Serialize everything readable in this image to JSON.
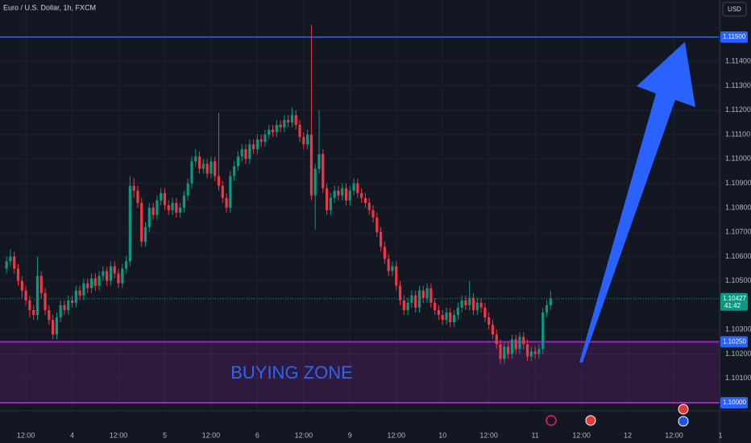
{
  "chart_data": {
    "type": "candlestick",
    "title": "Euro / U.S. Dollar, 1h, FXCM",
    "currency": "USD",
    "background": "#131722",
    "grid_color": "#1f2330",
    "up_color": "#089981",
    "down_color": "#f23645",
    "grid": true,
    "xlim": [
      -1.7,
      184.8
    ],
    "ylim": [
      1.09967,
      1.11652
    ],
    "xticks": [
      {
        "value": 5,
        "label": "12:00"
      },
      {
        "value": 17,
        "label": "4"
      },
      {
        "value": 29,
        "label": "12:00"
      },
      {
        "value": 41,
        "label": "5"
      },
      {
        "value": 53,
        "label": "12:00"
      },
      {
        "value": 65,
        "label": "6"
      },
      {
        "value": 77,
        "label": "12:00"
      },
      {
        "value": 89,
        "label": "9"
      },
      {
        "value": 101,
        "label": "12:00"
      },
      {
        "value": 113,
        "label": "10"
      },
      {
        "value": 125,
        "label": "12:00"
      },
      {
        "value": 137,
        "label": "11"
      },
      {
        "value": 149,
        "label": "12:00"
      },
      {
        "value": 161,
        "label": "12"
      },
      {
        "value": 173,
        "label": "12:00"
      },
      {
        "value": 185,
        "label": "1"
      }
    ],
    "yticks": [
      {
        "value": 1.114,
        "label": "1.11400"
      },
      {
        "value": 1.113,
        "label": "1.11300"
      },
      {
        "value": 1.112,
        "label": "1.11200"
      },
      {
        "value": 1.111,
        "label": "1.11100"
      },
      {
        "value": 1.11,
        "label": "1.11000"
      },
      {
        "value": 1.109,
        "label": "1.10900"
      },
      {
        "value": 1.108,
        "label": "1.10800"
      },
      {
        "value": 1.107,
        "label": "1.10700"
      },
      {
        "value": 1.106,
        "label": "1.10600"
      },
      {
        "value": 1.105,
        "label": "1.10500"
      },
      {
        "value": 1.103,
        "label": "1.10300"
      },
      {
        "value": 1.102,
        "label": "1.10200"
      },
      {
        "value": 1.101,
        "label": "1.10100"
      }
    ],
    "open": [
      1.1055,
      1.1058,
      1.106,
      1.1055,
      1.105,
      1.1046,
      1.1042,
      1.1038,
      1.1036,
      1.1052,
      1.1045,
      1.1038,
      1.1034,
      1.1028,
      1.1035,
      1.104,
      1.1038,
      1.1042,
      1.1041,
      1.1046,
      1.1044,
      1.1049,
      1.1047,
      1.1051,
      1.1048,
      1.1052,
      1.1054,
      1.105,
      1.1056,
      1.1053,
      1.1049,
      1.1055,
      1.1058,
      1.1089,
      1.1087,
      1.1082,
      1.1066,
      1.1072,
      1.108,
      1.1077,
      1.1083,
      1.1086,
      1.1081,
      1.1079,
      1.1082,
      1.1078,
      1.108,
      1.1085,
      1.109,
      1.1099,
      1.1101,
      1.1096,
      1.1098,
      1.1094,
      1.1099,
      1.1093,
      1.1089,
      1.1084,
      1.108,
      1.1093,
      1.1097,
      1.1101,
      1.1104,
      1.11,
      1.1106,
      1.1104,
      1.1108,
      1.1107,
      1.111,
      1.1112,
      1.1111,
      1.1114,
      1.1113,
      1.1116,
      1.1115,
      1.1118,
      1.1114,
      1.1109,
      1.1106,
      1.111,
      1.1085,
      1.1096,
      1.1102,
      1.1088,
      1.1079,
      1.1084,
      1.1087,
      1.1085,
      1.1088,
      1.1083,
      1.1087,
      1.109,
      1.1086,
      1.1084,
      1.1082,
      1.1079,
      1.1076,
      1.107,
      1.1064,
      1.1059,
      1.1054,
      1.1056,
      1.1048,
      1.1042,
      1.1038,
      1.1041,
      1.1044,
      1.1039,
      1.1046,
      1.1043,
      1.1047,
      1.1041,
      1.1038,
      1.1036,
      1.1034,
      1.1037,
      1.1033,
      1.1036,
      1.1039,
      1.1042,
      1.104,
      1.1043,
      1.1038,
      1.1041,
      1.1039,
      1.1035,
      1.1032,
      1.1028,
      1.1024,
      1.1018,
      1.1023,
      1.102,
      1.1026,
      1.1022,
      1.1027,
      1.1024,
      1.1019,
      1.1021,
      1.102,
      1.1022,
      1.1037,
      1.104
    ],
    "high": [
      1.106,
      1.1063,
      1.1062,
      1.1057,
      1.1052,
      1.1048,
      1.1044,
      1.104,
      1.106,
      1.1054,
      1.1047,
      1.104,
      1.1036,
      1.1037,
      1.1042,
      1.1042,
      1.1044,
      1.1044,
      1.1048,
      1.1048,
      1.1051,
      1.1051,
      1.1053,
      1.1053,
      1.1054,
      1.1056,
      1.1056,
      1.1058,
      1.1058,
      1.1055,
      1.1057,
      1.106,
      1.1093,
      1.1092,
      1.1089,
      1.1084,
      1.1074,
      1.1082,
      1.1082,
      1.1085,
      1.1088,
      1.1088,
      1.1083,
      1.1084,
      1.1084,
      1.1082,
      1.1087,
      1.1092,
      1.1101,
      1.1104,
      1.1103,
      1.11,
      1.11,
      1.1101,
      1.1101,
      1.1119,
      1.1091,
      1.1086,
      1.1095,
      1.1099,
      1.1103,
      1.1106,
      1.1106,
      1.1108,
      1.1108,
      1.111,
      1.111,
      1.1112,
      1.1114,
      1.1114,
      1.1116,
      1.1116,
      1.1118,
      1.1118,
      1.1121,
      1.112,
      1.1116,
      1.1111,
      1.1112,
      1.1155,
      1.1098,
      1.112,
      1.1104,
      1.109,
      1.1086,
      1.1089,
      1.1089,
      1.109,
      1.109,
      1.1089,
      1.1092,
      1.1092,
      1.1088,
      1.1086,
      1.1084,
      1.1081,
      1.1078,
      1.1072,
      1.1066,
      1.1061,
      1.1058,
      1.1058,
      1.105,
      1.1044,
      1.1043,
      1.1046,
      1.1046,
      1.1048,
      1.1048,
      1.1049,
      1.1049,
      1.1043,
      1.104,
      1.1038,
      1.1039,
      1.1039,
      1.1038,
      1.1041,
      1.1044,
      1.1044,
      1.105,
      1.1045,
      1.1043,
      1.1043,
      1.1041,
      1.1037,
      1.1034,
      1.103,
      1.1026,
      1.1025,
      1.1025,
      1.1028,
      1.1028,
      1.1029,
      1.1029,
      1.1026,
      1.1023,
      1.1023,
      1.1024,
      1.1039,
      1.1042,
      1.1046
    ],
    "low": [
      1.1053,
      1.1056,
      1.1053,
      1.1048,
      1.1043,
      1.104,
      1.1035,
      1.1034,
      1.1034,
      1.1043,
      1.1036,
      1.1032,
      1.1026,
      1.1026,
      1.1033,
      1.1036,
      1.1036,
      1.1039,
      1.1039,
      1.1042,
      1.1042,
      1.1045,
      1.1045,
      1.1046,
      1.1046,
      1.105,
      1.1048,
      1.1048,
      1.1051,
      1.1047,
      1.1047,
      1.1053,
      1.1056,
      1.1084,
      1.108,
      1.1064,
      1.1064,
      1.107,
      1.1075,
      1.1075,
      1.1081,
      1.1079,
      1.1077,
      1.1077,
      1.1076,
      1.1076,
      1.1078,
      1.1083,
      1.1088,
      1.1097,
      1.1094,
      1.1094,
      1.1092,
      1.1092,
      1.1091,
      1.1087,
      1.1082,
      1.1078,
      1.1078,
      1.1091,
      1.1095,
      1.1099,
      1.1098,
      1.1098,
      1.1102,
      1.1102,
      1.1105,
      1.1105,
      1.1108,
      1.1109,
      1.1109,
      1.1111,
      1.1111,
      1.1113,
      1.1113,
      1.1112,
      1.1107,
      1.1104,
      1.1104,
      1.1083,
      1.1071,
      1.1094,
      1.1086,
      1.1077,
      1.1077,
      1.1082,
      1.1083,
      1.1083,
      1.1081,
      1.1081,
      1.1085,
      1.1084,
      1.1082,
      1.108,
      1.1077,
      1.1074,
      1.1068,
      1.1062,
      1.1057,
      1.1052,
      1.1052,
      1.1046,
      1.104,
      1.1036,
      1.1036,
      1.1039,
      1.1037,
      1.1037,
      1.1041,
      1.1041,
      1.1039,
      1.1036,
      1.1034,
      1.1032,
      1.1032,
      1.1031,
      1.1031,
      1.1034,
      1.1037,
      1.1038,
      1.1038,
      1.1036,
      1.1036,
      1.1037,
      1.1033,
      1.103,
      1.1026,
      1.1022,
      1.1016,
      1.1016,
      1.1018,
      1.1018,
      1.102,
      1.102,
      1.1022,
      1.1017,
      1.1017,
      1.1018,
      1.1018,
      1.102,
      1.1035,
      1.1038
    ],
    "close": [
      1.1058,
      1.106,
      1.1055,
      1.105,
      1.1046,
      1.1042,
      1.1038,
      1.1036,
      1.1052,
      1.1045,
      1.1038,
      1.1034,
      1.1028,
      1.1035,
      1.104,
      1.1038,
      1.1042,
      1.1041,
      1.1046,
      1.1044,
      1.1049,
      1.1047,
      1.1051,
      1.1048,
      1.1052,
      1.1054,
      1.105,
      1.1056,
      1.1053,
      1.1049,
      1.1055,
      1.1058,
      1.1089,
      1.1087,
      1.1082,
      1.1066,
      1.1072,
      1.108,
      1.1077,
      1.1083,
      1.1086,
      1.1081,
      1.1079,
      1.1082,
      1.1078,
      1.108,
      1.1085,
      1.109,
      1.1099,
      1.1101,
      1.1096,
      1.1098,
      1.1094,
      1.1099,
      1.1093,
      1.1089,
      1.1084,
      1.108,
      1.1093,
      1.1097,
      1.1101,
      1.1104,
      1.11,
      1.1106,
      1.1104,
      1.1108,
      1.1107,
      1.111,
      1.1112,
      1.1111,
      1.1114,
      1.1113,
      1.1116,
      1.1115,
      1.1118,
      1.1114,
      1.1109,
      1.1106,
      1.111,
      1.1085,
      1.1096,
      1.1102,
      1.1088,
      1.1079,
      1.1084,
      1.1087,
      1.1085,
      1.1088,
      1.1083,
      1.1087,
      1.109,
      1.1086,
      1.1084,
      1.1082,
      1.1079,
      1.1076,
      1.107,
      1.1064,
      1.1059,
      1.1054,
      1.1056,
      1.1048,
      1.1042,
      1.1038,
      1.1041,
      1.1044,
      1.1039,
      1.1046,
      1.1043,
      1.1047,
      1.1041,
      1.1038,
      1.1036,
      1.1034,
      1.1037,
      1.1033,
      1.1036,
      1.1039,
      1.1042,
      1.104,
      1.1043,
      1.1038,
      1.1041,
      1.1039,
      1.1035,
      1.1032,
      1.1028,
      1.1024,
      1.1018,
      1.1023,
      1.102,
      1.1026,
      1.1022,
      1.1027,
      1.1024,
      1.1019,
      1.1021,
      1.102,
      1.1022,
      1.1037,
      1.104,
      1.10427
    ],
    "last_price": {
      "value": 1.10427,
      "label": "1.10427",
      "countdown": "41:42"
    },
    "target": {
      "value": 1.115,
      "label": "1.11500",
      "color": "#2962ff"
    },
    "zone": {
      "label": "BUYING ZONE",
      "color": "#9c27b0",
      "text_color": "#2f64f0",
      "high": {
        "value": 1.1025,
        "label": "1.10250"
      },
      "low": {
        "value": 1.1,
        "label": "1.10000"
      }
    }
  }
}
